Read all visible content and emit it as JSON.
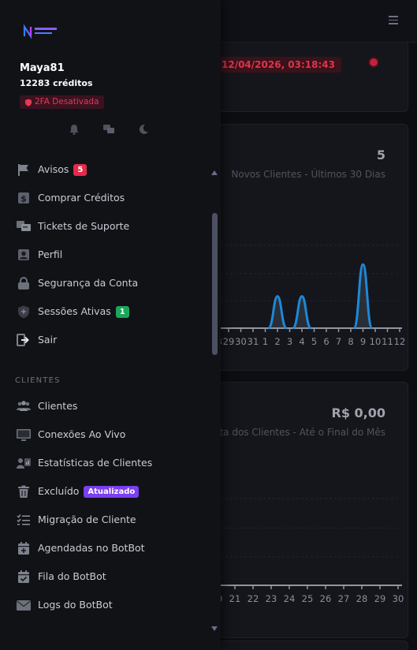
{
  "header": {
    "menu_icon": "hamburger-icon"
  },
  "banner": {
    "date_text": "12/04/2026, 03:18:43"
  },
  "stats": [
    {
      "value": "5",
      "label": "Novos Clientes - Últimos 30 Dias"
    },
    {
      "value": "R$ 0,00",
      "label": "eita dos Clientes - Até o Final do Mês"
    }
  ],
  "chart_data": [
    {
      "type": "area",
      "title": "",
      "categories": [
        "28",
        "29",
        "30",
        "31",
        "1",
        "2",
        "3",
        "4",
        "5",
        "6",
        "7",
        "8",
        "9",
        "10",
        "11",
        "12"
      ],
      "values": [
        0,
        0,
        0,
        0,
        0,
        1,
        0,
        1,
        0,
        0,
        0,
        0,
        2,
        0,
        0,
        0
      ],
      "ylim": [
        0,
        2.6
      ],
      "grid": true,
      "color": "#1e88d8"
    },
    {
      "type": "area",
      "title": "",
      "categories": [
        "20",
        "21",
        "22",
        "23",
        "24",
        "25",
        "26",
        "27",
        "28",
        "29",
        "30"
      ],
      "values": [
        0,
        0,
        0,
        0,
        0,
        0,
        0,
        0,
        0,
        0,
        0
      ],
      "ylim": [
        0,
        1
      ],
      "grid": true,
      "color": "#1e88d8"
    }
  ],
  "sidebar": {
    "user": {
      "name": "Maya81",
      "credits": "12283 créditos",
      "twofa_label": "2FA Desativada"
    },
    "quick_actions": [
      "bell-icon",
      "chat-icon",
      "moon-icon"
    ],
    "items": [
      {
        "label": "Avisos",
        "badge": "5",
        "badge_color": "#e52a4b",
        "icon": "flag-icon"
      },
      {
        "label": "Comprar Créditos",
        "icon": "dollar-icon"
      },
      {
        "label": "Tickets de Suporte",
        "icon": "tickets-icon"
      },
      {
        "label": "Perfil",
        "icon": "user-icon"
      },
      {
        "label": "Segurança da Conta",
        "icon": "lock-icon"
      },
      {
        "label": "Sessões Ativas",
        "badge": "1",
        "badge_color": "#1aa75a",
        "icon": "shield-icon"
      },
      {
        "label": "Sair",
        "icon": "logout-icon"
      }
    ],
    "section_title": "CLIENTES",
    "client_items": [
      {
        "label": "Clientes",
        "icon": "users-icon"
      },
      {
        "label": "Conexões Ao Vivo",
        "icon": "monitor-icon"
      },
      {
        "label": "Estatísticas de Clientes",
        "icon": "user-stats-icon"
      },
      {
        "label": "Excluído",
        "badge": "Atualizado",
        "badge_color": "#7b3ff2",
        "icon": "trash-icon"
      },
      {
        "label": "Migração de Cliente",
        "icon": "checklist-icon"
      },
      {
        "label": "Agendadas no BotBot",
        "icon": "calendar-plus-icon"
      },
      {
        "label": "Fila do BotBot",
        "icon": "calendar-check-icon"
      },
      {
        "label": "Logs do BotBot",
        "icon": "envelope-icon"
      }
    ]
  }
}
